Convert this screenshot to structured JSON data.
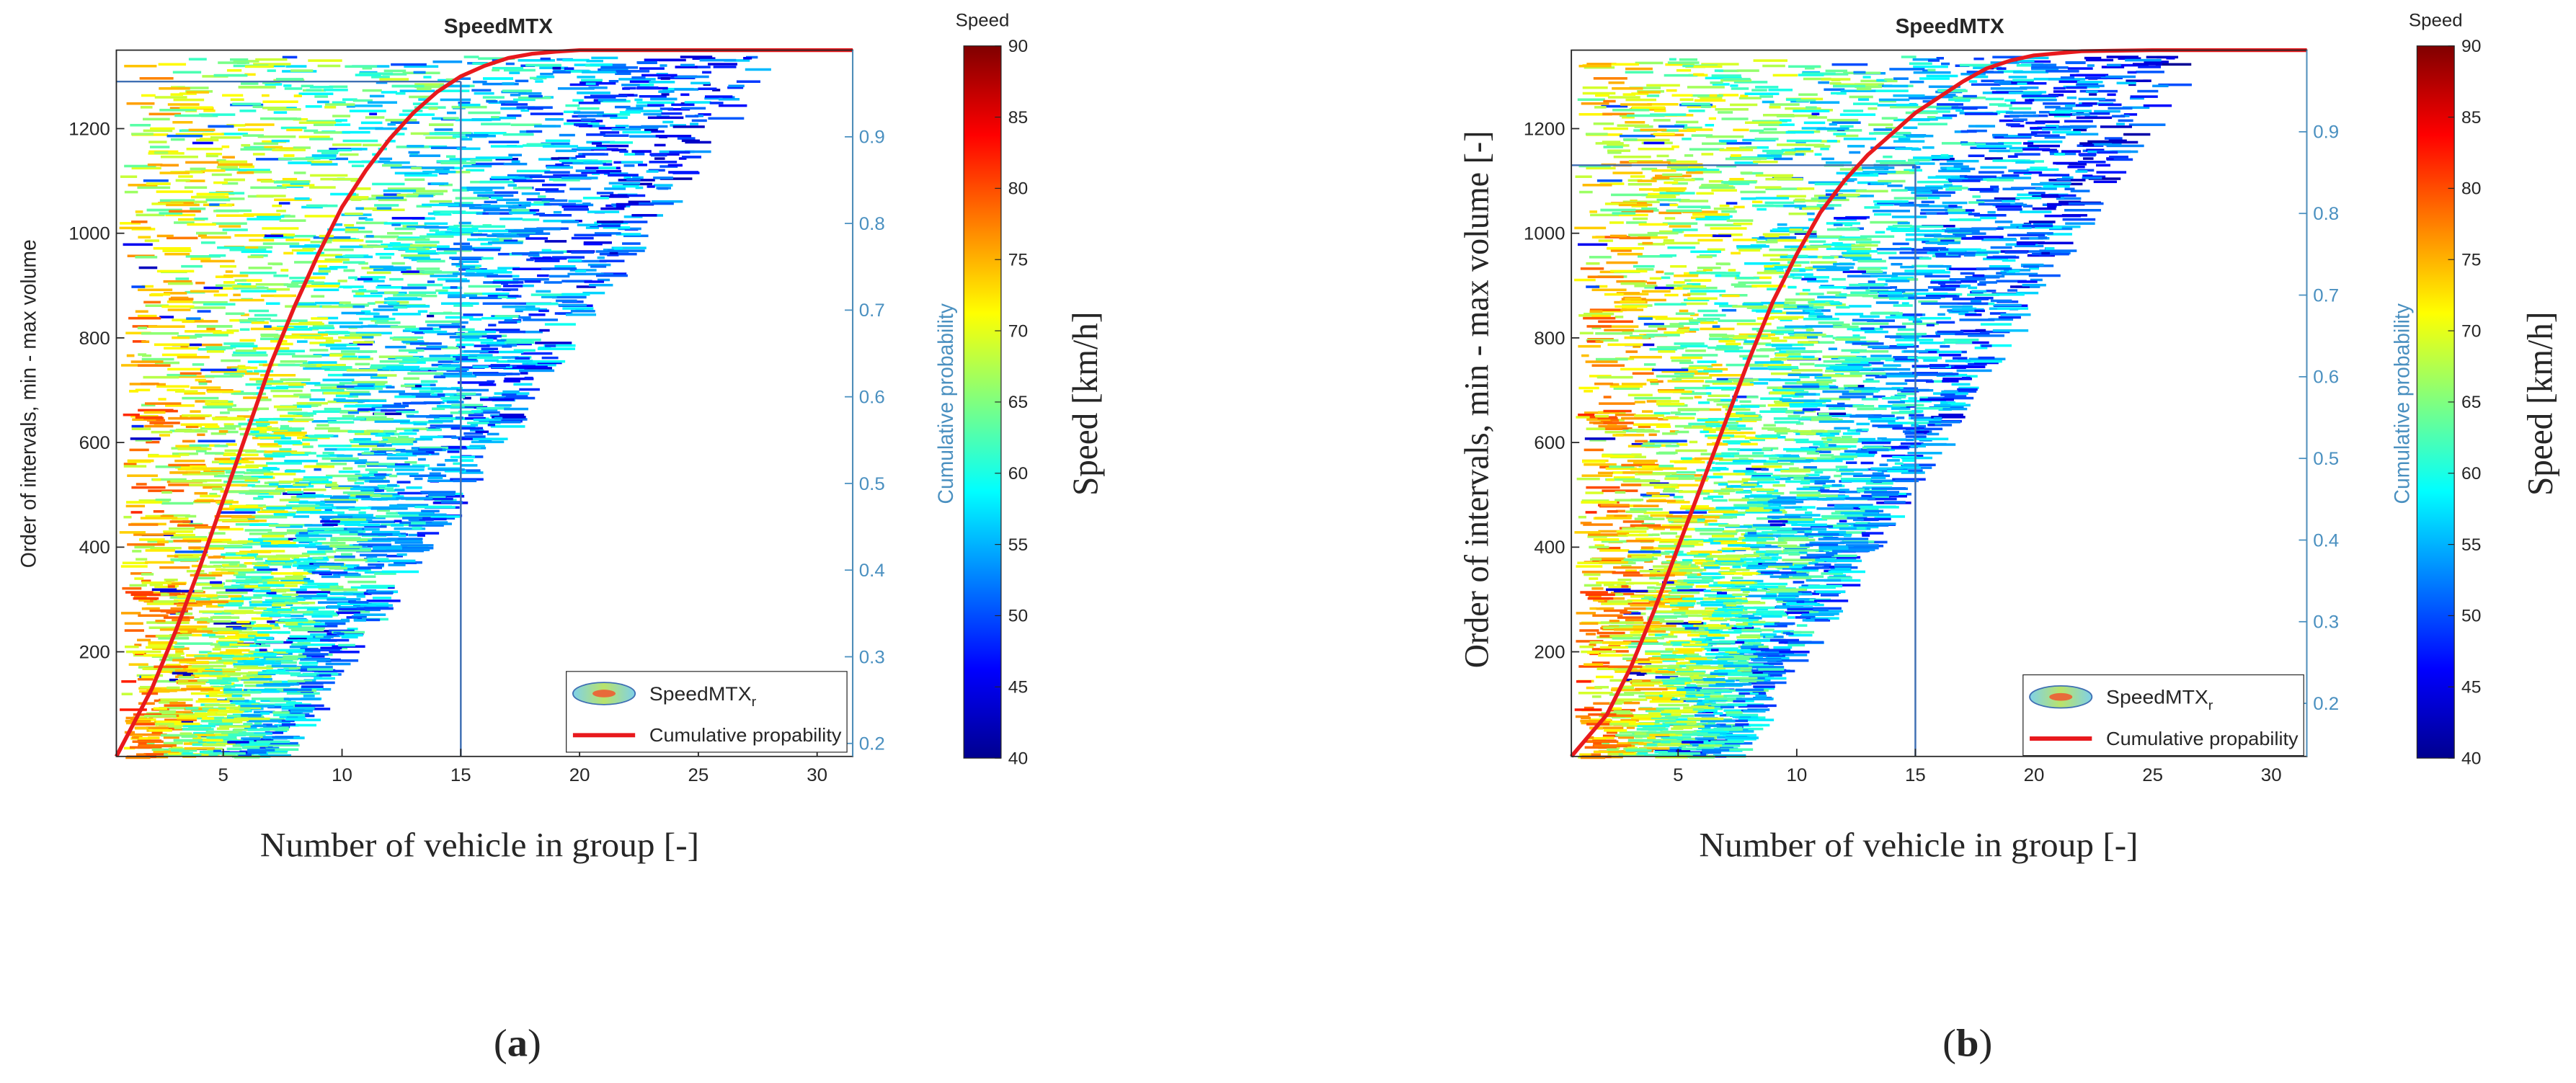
{
  "panels": [
    {
      "caption": "(a)",
      "caption_letter": "a",
      "title": "SpeedMTX",
      "xlabel": "Number of vehicle in group [-]",
      "ylabel": "Order of intervals, min - max volume",
      "y2label": "Cumulative probability",
      "colorbar_title": "Speed",
      "colorbar_label": "Speed [km/h]"
    },
    {
      "caption": "(b)",
      "caption_letter": "b",
      "title": "SpeedMTX",
      "xlabel": "Number of vehicle in group [-]",
      "ylabel": "Order of intervals, min - max volume [-]",
      "y2label": "Cumulative probability",
      "colorbar_title": "Speed",
      "colorbar_label": "Speed [km/h]"
    }
  ],
  "legend": {
    "heatmap_label": "SpeedMTX",
    "heatmap_subscript": "r",
    "line_label": "Cumulative propability"
  },
  "colors": {
    "axis": "#262626",
    "secondary_axis": "#4a90c0",
    "cdf_line": "#e8191d",
    "guide_line": "#3f6fb3"
  },
  "chart_data": [
    {
      "type": "heatmap",
      "title": "SpeedMTX",
      "xlabel": "Number of vehicle in group [-]",
      "ylabel": "Order of intervals, min - max volume",
      "y2label": "Cumulative probability",
      "xlim": [
        0.5,
        31.5
      ],
      "ylim": [
        0,
        1350
      ],
      "y2lim": [
        0.185,
        1.0
      ],
      "xticks": [
        5,
        10,
        15,
        20,
        25,
        30
      ],
      "yticks": [
        200,
        400,
        600,
        800,
        1000,
        1200
      ],
      "y2ticks": [
        0.2,
        0.3,
        0.4,
        0.5,
        0.6,
        0.7,
        0.8,
        0.9
      ],
      "colorbar": {
        "label": "Speed [km/h]",
        "range": [
          40,
          90
        ],
        "ticks": [
          40,
          45,
          50,
          55,
          60,
          65,
          70,
          75,
          80,
          85,
          90
        ]
      },
      "cdf": {
        "x": [
          0.5,
          2,
          3,
          4,
          5,
          6,
          7,
          8,
          9,
          10,
          11,
          12,
          13,
          14,
          15,
          16,
          17,
          18,
          19,
          20,
          22,
          25,
          28,
          31.5
        ],
        "y": [
          0,
          130,
          240,
          360,
          490,
          620,
          750,
          860,
          960,
          1050,
          1120,
          1180,
          1230,
          1270,
          1300,
          1320,
          1335,
          1343,
          1347,
          1350,
          1350,
          1350,
          1350,
          1350
        ]
      },
      "guide": {
        "x": 15,
        "y": 1290
      },
      "legend": [
        "SpeedMTX_r",
        "Cumulative propability"
      ]
    },
    {
      "type": "heatmap",
      "title": "SpeedMTX",
      "xlabel": "Number of vehicle in group [-]",
      "ylabel": "Order of intervals, min - max volume [-]",
      "y2label": "Cumulative probability",
      "xlim": [
        0.5,
        31.5
      ],
      "ylim": [
        0,
        1350
      ],
      "y2lim": [
        0.135,
        1.0
      ],
      "xticks": [
        5,
        10,
        15,
        20,
        25,
        30
      ],
      "yticks": [
        200,
        400,
        600,
        800,
        1000,
        1200
      ],
      "y2ticks": [
        0.2,
        0.3,
        0.4,
        0.5,
        0.6,
        0.7,
        0.8,
        0.9
      ],
      "colorbar": {
        "label": "Speed [km/h]",
        "range": [
          40,
          90
        ],
        "ticks": [
          40,
          45,
          50,
          55,
          60,
          65,
          70,
          75,
          80,
          85,
          90
        ]
      },
      "cdf": {
        "x": [
          0.5,
          2,
          3,
          4,
          5,
          6,
          7,
          8,
          9,
          10,
          11,
          12,
          13,
          14,
          15,
          16,
          17,
          18,
          19,
          20,
          22,
          25,
          28,
          31.5
        ],
        "y": [
          0,
          80,
          170,
          280,
          400,
          520,
          640,
          760,
          870,
          960,
          1040,
          1100,
          1150,
          1190,
          1230,
          1260,
          1290,
          1315,
          1330,
          1340,
          1348,
          1350,
          1350,
          1350
        ]
      },
      "guide": {
        "x": 15,
        "y": 1130
      },
      "legend": [
        "SpeedMTX_r",
        "Cumulative propability"
      ]
    }
  ]
}
